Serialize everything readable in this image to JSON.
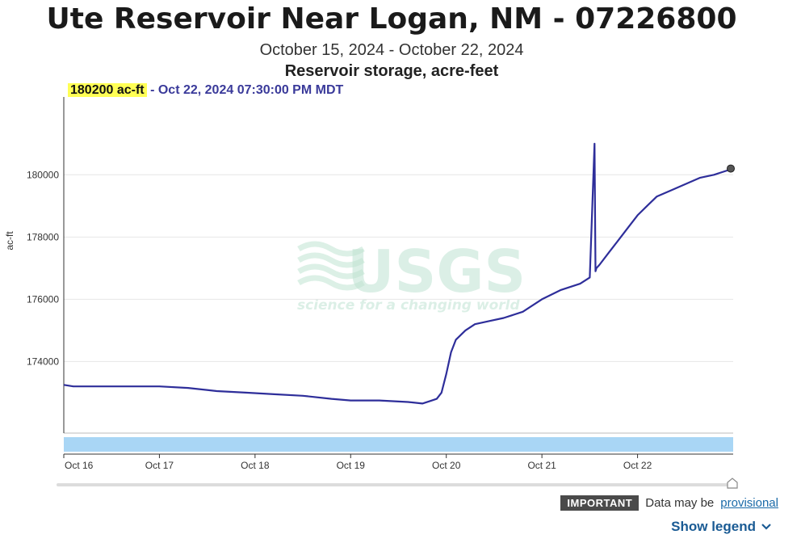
{
  "header": {
    "title": "Ute Reservoir Near Logan, NM - 07226800",
    "date_range": "October 15, 2024 - October 22, 2024",
    "parameter": "Reservoir storage, acre-feet"
  },
  "readout": {
    "value": "180200 ac-ft",
    "separator": " - ",
    "timestamp": "Oct 22, 2024 07:30:00 PM MDT"
  },
  "footer": {
    "badge": "IMPORTANT",
    "note_text": "Data may be",
    "note_link": "provisional",
    "legend_button": "Show legend",
    "legend_icon": "chevron-down-icon"
  },
  "watermark": {
    "brand": "USGS",
    "tagline": "science for a changing world"
  },
  "colors": {
    "series": "#2e2e9a",
    "highlight": "#ffff55",
    "brush": "#a9d6f5",
    "link": "#1a6aa8"
  },
  "chart_data": {
    "type": "line",
    "ylabel": "ac-ft",
    "xlabel": "",
    "x_ticks": [
      "Oct 16",
      "Oct 17",
      "Oct 18",
      "Oct 19",
      "Oct 20",
      "Oct 21",
      "Oct 22"
    ],
    "y_ticks": [
      174000,
      176000,
      178000,
      180000
    ],
    "ylim": [
      171700,
      182500
    ],
    "xlim": [
      0.0,
      7.0
    ],
    "grid": true,
    "series": [
      {
        "x": [
          0.0,
          0.1,
          0.3,
          0.5,
          0.7,
          1.0,
          1.3,
          1.6,
          1.9,
          2.2,
          2.5,
          2.8,
          3.0,
          3.3,
          3.6,
          3.75,
          3.85,
          3.9,
          3.95,
          4.0,
          4.05,
          4.1,
          4.2,
          4.3,
          4.45,
          4.6,
          4.8,
          5.0,
          5.2,
          5.4,
          5.5,
          5.55,
          5.56,
          5.57,
          5.6,
          5.7,
          5.8,
          5.9,
          6.0,
          6.1,
          6.2,
          6.35,
          6.5,
          6.65,
          6.8,
          6.95,
          7.0
        ],
        "y": [
          173250,
          173200,
          173200,
          173200,
          173200,
          173200,
          173150,
          173050,
          173000,
          172950,
          172900,
          172800,
          172750,
          172750,
          172700,
          172650,
          172750,
          172800,
          173000,
          173600,
          174300,
          174700,
          175000,
          175200,
          175300,
          175400,
          175600,
          176000,
          176300,
          176500,
          176700,
          181000,
          176900,
          177000,
          177100,
          177500,
          177900,
          178300,
          178700,
          179000,
          179300,
          179500,
          179700,
          179900,
          180000,
          180150,
          180200
        ]
      }
    ],
    "marker": {
      "x": 7.0,
      "y": 180200
    }
  }
}
